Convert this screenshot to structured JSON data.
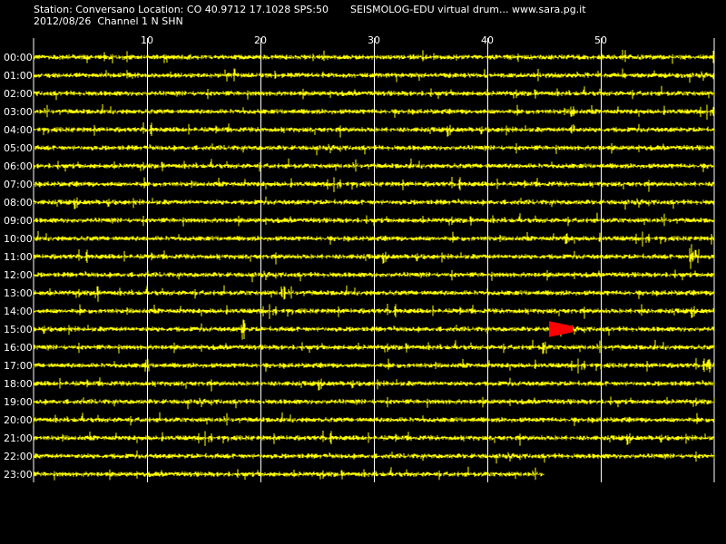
{
  "header": {
    "station_line": "Station: Conversano Location: CO 40.9712 17.1028 SPS:50",
    "date_line": "2012/08/26  Channel 1 N SHN",
    "title_line": "SEISMOLOG-EDU virtual drum... www.sara.pg.it"
  },
  "chart_data": {
    "type": "line",
    "title": "SEISMOLOG-EDU virtual drum... www.sara.pg.it",
    "xlabel": "",
    "ylabel": "",
    "x_unit": "minutes",
    "xlim": [
      0,
      60
    ],
    "x_ticks": [
      10,
      20,
      30,
      40,
      50
    ],
    "x_tick_labels": [
      "10",
      "20",
      "30",
      "40",
      "50"
    ],
    "row_labels": [
      "00:00",
      "01:00",
      "02:00",
      "03:00",
      "04:00",
      "05:00",
      "06:00",
      "07:00",
      "08:00",
      "09:00",
      "10:00",
      "11:00",
      "12:00",
      "13:00",
      "14:00",
      "15:00",
      "16:00",
      "17:00",
      "18:00",
      "19:00",
      "20:00",
      "21:00",
      "22:00",
      "23:00"
    ],
    "last_row_end_minute": 45,
    "grid": true,
    "trace_color": "#ffff00",
    "event_color": "#ff0000",
    "event": {
      "row": "15:00",
      "start_minute": 45.5,
      "end_minute": 47.5
    },
    "spikes": [
      {
        "row": "11:00",
        "minute": 58,
        "amplitude": 1.6
      },
      {
        "row": "11:00",
        "minute": 58.5,
        "amplitude": 1.2
      },
      {
        "row": "13:00",
        "minute": 5.5,
        "amplitude": 1.1
      },
      {
        "row": "13:00",
        "minute": 22,
        "amplitude": 1.0
      },
      {
        "row": "14:00",
        "minute": 53.5,
        "amplitude": 1.0
      },
      {
        "row": "15:00",
        "minute": 18.5,
        "amplitude": 1.3
      },
      {
        "row": "16:00",
        "minute": 45,
        "amplitude": 0.9
      },
      {
        "row": "17:00",
        "minute": 10,
        "amplitude": 0.8
      },
      {
        "row": "17:00",
        "minute": 59.5,
        "amplitude": 1.0
      },
      {
        "row": "03:00",
        "minute": 47.5,
        "amplitude": 0.9
      },
      {
        "row": "04:00",
        "minute": 47.5,
        "amplitude": 0.8
      },
      {
        "row": "10:00",
        "minute": 47,
        "amplitude": 0.7
      }
    ]
  }
}
